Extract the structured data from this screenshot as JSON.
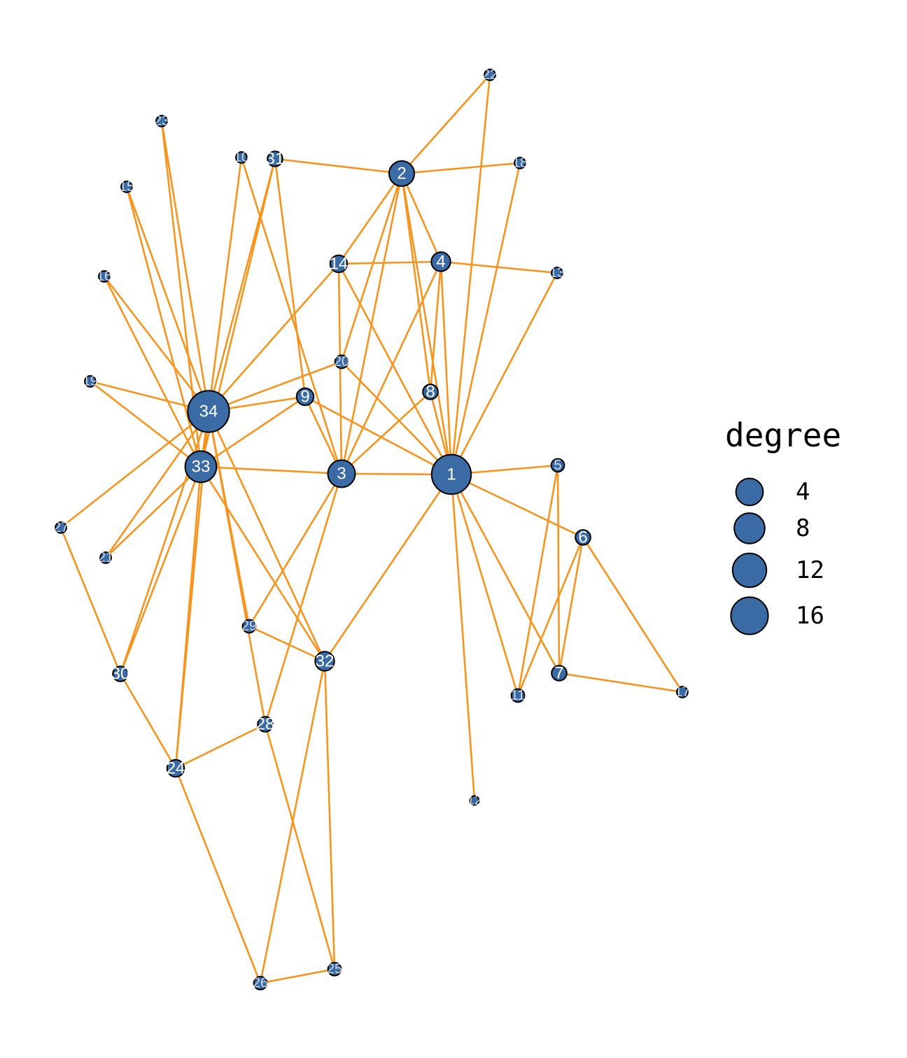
{
  "colors": {
    "node_fill": "#3B6BA5",
    "node_stroke": "#000000",
    "edge": "#F7941D",
    "label": "#FFFFFF"
  },
  "legend": {
    "title": "degree",
    "entries": [
      {
        "label": "4",
        "value": 4
      },
      {
        "label": "8",
        "value": 8
      },
      {
        "label": "12",
        "value": 12
      },
      {
        "label": "16",
        "value": 16
      }
    ]
  },
  "graph": {
    "nodes": [
      "1",
      "2",
      "3",
      "4",
      "5",
      "6",
      "7",
      "8",
      "9",
      "10",
      "11",
      "12",
      "13",
      "14",
      "15",
      "16",
      "17",
      "18",
      "19",
      "20",
      "21",
      "22",
      "23",
      "24",
      "25",
      "26",
      "27",
      "28",
      "29",
      "30",
      "31",
      "32",
      "33",
      "34"
    ],
    "edges": [
      [
        "1",
        "2"
      ],
      [
        "1",
        "3"
      ],
      [
        "1",
        "4"
      ],
      [
        "1",
        "5"
      ],
      [
        "1",
        "6"
      ],
      [
        "1",
        "7"
      ],
      [
        "1",
        "8"
      ],
      [
        "1",
        "9"
      ],
      [
        "1",
        "11"
      ],
      [
        "1",
        "12"
      ],
      [
        "1",
        "13"
      ],
      [
        "1",
        "14"
      ],
      [
        "1",
        "18"
      ],
      [
        "1",
        "20"
      ],
      [
        "1",
        "22"
      ],
      [
        "1",
        "32"
      ],
      [
        "2",
        "3"
      ],
      [
        "2",
        "4"
      ],
      [
        "2",
        "8"
      ],
      [
        "2",
        "14"
      ],
      [
        "2",
        "18"
      ],
      [
        "2",
        "20"
      ],
      [
        "2",
        "22"
      ],
      [
        "2",
        "31"
      ],
      [
        "3",
        "4"
      ],
      [
        "3",
        "8"
      ],
      [
        "3",
        "9"
      ],
      [
        "3",
        "10"
      ],
      [
        "3",
        "14"
      ],
      [
        "3",
        "28"
      ],
      [
        "3",
        "29"
      ],
      [
        "3",
        "33"
      ],
      [
        "4",
        "8"
      ],
      [
        "4",
        "13"
      ],
      [
        "4",
        "14"
      ],
      [
        "5",
        "7"
      ],
      [
        "5",
        "11"
      ],
      [
        "6",
        "7"
      ],
      [
        "6",
        "11"
      ],
      [
        "6",
        "17"
      ],
      [
        "7",
        "17"
      ],
      [
        "9",
        "31"
      ],
      [
        "9",
        "33"
      ],
      [
        "9",
        "34"
      ],
      [
        "10",
        "34"
      ],
      [
        "14",
        "34"
      ],
      [
        "15",
        "33"
      ],
      [
        "15",
        "34"
      ],
      [
        "16",
        "33"
      ],
      [
        "16",
        "34"
      ],
      [
        "19",
        "33"
      ],
      [
        "19",
        "34"
      ],
      [
        "20",
        "34"
      ],
      [
        "21",
        "33"
      ],
      [
        "21",
        "34"
      ],
      [
        "23",
        "33"
      ],
      [
        "23",
        "34"
      ],
      [
        "24",
        "26"
      ],
      [
        "24",
        "28"
      ],
      [
        "24",
        "30"
      ],
      [
        "24",
        "33"
      ],
      [
        "24",
        "34"
      ],
      [
        "25",
        "26"
      ],
      [
        "25",
        "28"
      ],
      [
        "25",
        "32"
      ],
      [
        "26",
        "32"
      ],
      [
        "27",
        "30"
      ],
      [
        "27",
        "34"
      ],
      [
        "28",
        "34"
      ],
      [
        "29",
        "32"
      ],
      [
        "29",
        "34"
      ],
      [
        "30",
        "33"
      ],
      [
        "30",
        "34"
      ],
      [
        "31",
        "33"
      ],
      [
        "31",
        "34"
      ],
      [
        "32",
        "33"
      ],
      [
        "32",
        "34"
      ],
      [
        "33",
        "34"
      ]
    ]
  }
}
